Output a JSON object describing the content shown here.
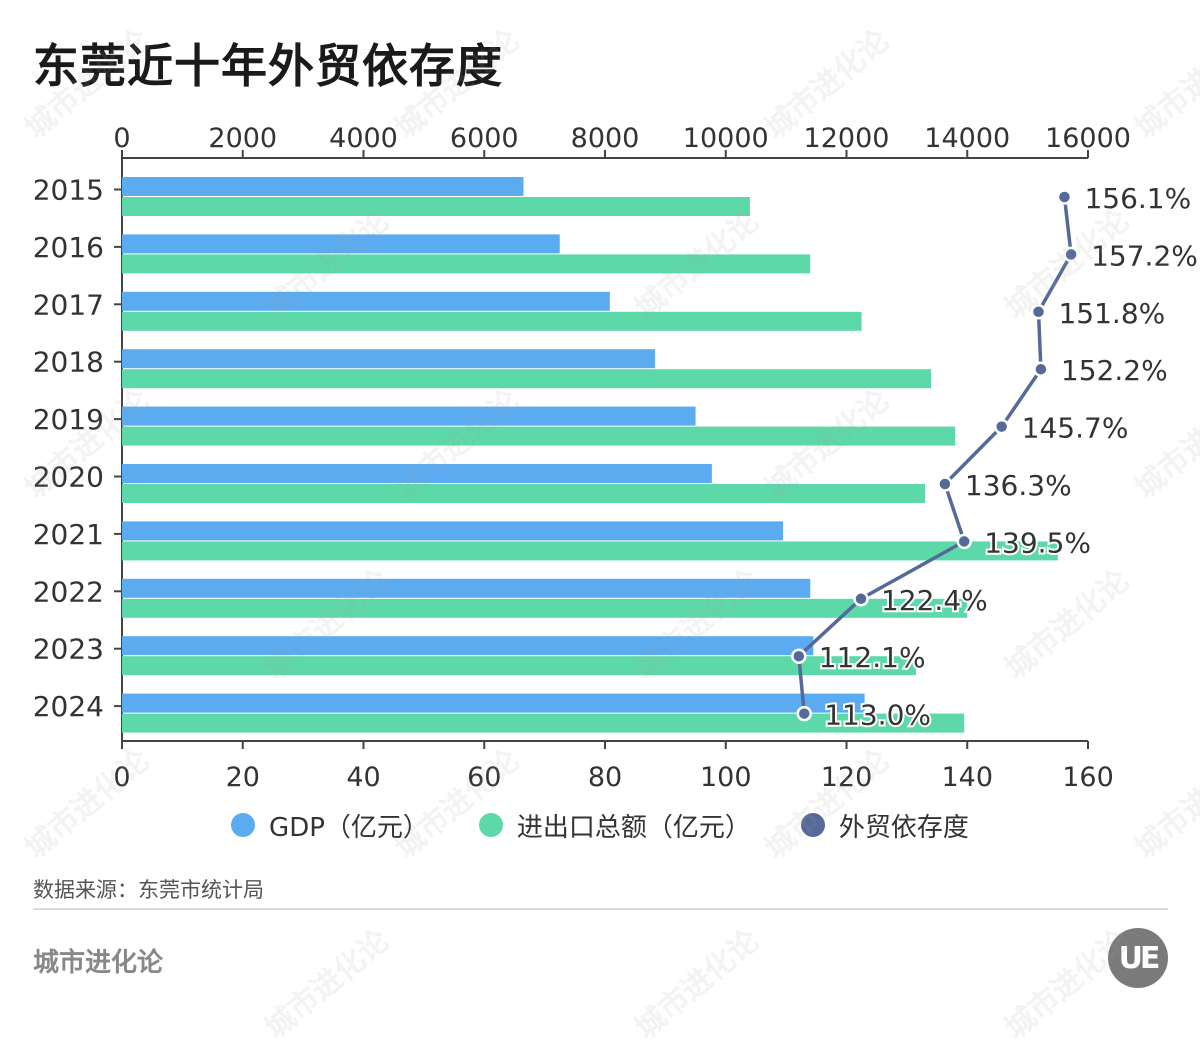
{
  "title": "东莞近十年外贸依存度",
  "legend": [
    {
      "label": "GDP（亿元）",
      "color": "#5aabf0"
    },
    {
      "label": "进出口总额（亿元）",
      "color": "#5dd8a8"
    },
    {
      "label": "外贸依存度",
      "color": "#556a99"
    }
  ],
  "source": "数据来源：东莞市统计局",
  "brand": "城市进化论",
  "logo_text": "UE",
  "watermark_text": "城市进化论",
  "chart_data": {
    "type": "bar",
    "orientation": "horizontal",
    "categories": [
      "2015",
      "2016",
      "2017",
      "2018",
      "2019",
      "2020",
      "2021",
      "2022",
      "2023",
      "2024"
    ],
    "top_axis": {
      "min": 0,
      "max": 16000,
      "ticks": [
        "0",
        "2000",
        "4000",
        "6000",
        "8000",
        "10000",
        "12000",
        "14000",
        "16000"
      ]
    },
    "bottom_axis": {
      "min": 0,
      "max": 160,
      "ticks": [
        "0",
        "20",
        "40",
        "60",
        "80",
        "100",
        "120",
        "140",
        "160"
      ]
    },
    "series": [
      {
        "name": "GDP（亿元）",
        "type": "bar",
        "axis": "top",
        "color": "#5aabf0",
        "values": [
          6650,
          7250,
          8080,
          8830,
          9500,
          9770,
          10950,
          11400,
          11450,
          12300
        ]
      },
      {
        "name": "进出口总额（亿元）",
        "type": "bar",
        "axis": "top",
        "color": "#5dd8a8",
        "values": [
          10400,
          11400,
          12250,
          13400,
          13800,
          13300,
          15500,
          14000,
          13150,
          13950
        ]
      },
      {
        "name": "外贸依存度",
        "type": "line",
        "axis": "bottom",
        "color": "#556a99",
        "values": [
          156.1,
          157.2,
          151.8,
          152.2,
          145.7,
          136.3,
          139.5,
          122.4,
          112.1,
          113.0
        ],
        "labels": [
          "156.1%",
          "157.2%",
          "151.8%",
          "152.2%",
          "145.7%",
          "136.3%",
          "139.5%",
          "122.4%",
          "112.1%",
          "113.0%"
        ]
      }
    ],
    "grid": false,
    "legend_position": "bottom"
  }
}
